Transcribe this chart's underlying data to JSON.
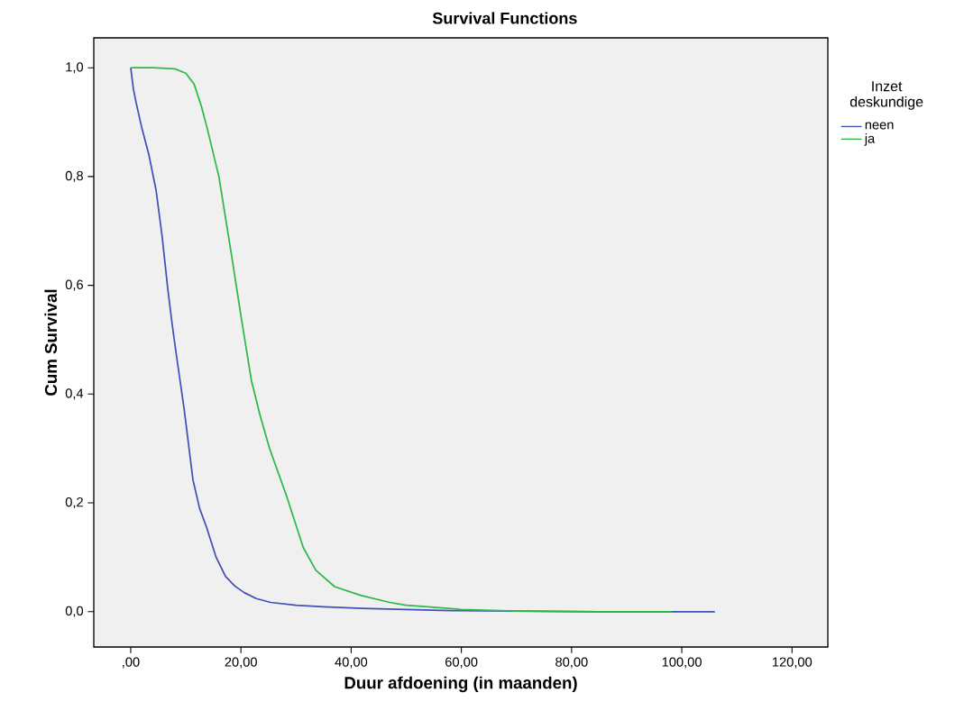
{
  "chart_data": {
    "type": "line",
    "title": "Survival Functions",
    "xlabel": "Duur afdoening (in maanden)",
    "ylabel": "Cum Survival",
    "legend_title": "Inzet deskundige",
    "xlim": [
      -6.7,
      126.5
    ],
    "ylim": [
      -0.065,
      1.055
    ],
    "xticks": [
      {
        "value": 0,
        "label": ",00"
      },
      {
        "value": 20,
        "label": "20,00"
      },
      {
        "value": 40,
        "label": "40,00"
      },
      {
        "value": 60,
        "label": "60,00"
      },
      {
        "value": 80,
        "label": "80,00"
      },
      {
        "value": 100,
        "label": "100,00"
      },
      {
        "value": 120,
        "label": "120,00"
      }
    ],
    "yticks": [
      {
        "value": 0,
        "label": "0,0"
      },
      {
        "value": 0.2,
        "label": "0,2"
      },
      {
        "value": 0.4,
        "label": "0,4"
      },
      {
        "value": 0.6,
        "label": "0,6"
      },
      {
        "value": 0.8,
        "label": "0,8"
      },
      {
        "value": 1.0,
        "label": "1,0"
      }
    ],
    "grid": false,
    "legend": "right",
    "marker": "none",
    "line_style": "solid",
    "series": [
      {
        "name": "neen",
        "color": "#4050b8",
        "x": [
          0,
          0.5,
          1,
          2.0,
          3.3,
          4.6,
          5.7,
          6.7,
          7.5,
          8.2,
          9.7,
          11.3,
          12.5,
          13.8,
          15.5,
          17.2,
          18.9,
          20.6,
          22.8,
          25.4,
          30,
          35,
          42,
          50,
          58,
          70,
          85,
          106
        ],
        "values": [
          1.0,
          0.96,
          0.935,
          0.89,
          0.84,
          0.775,
          0.69,
          0.596,
          0.53,
          0.478,
          0.372,
          0.242,
          0.19,
          0.154,
          0.1,
          0.065,
          0.047,
          0.035,
          0.024,
          0.017,
          0.012,
          0.009,
          0.006,
          0.004,
          0.002,
          0.001,
          0.0,
          0.0
        ]
      },
      {
        "name": "ja",
        "color": "#2db84a",
        "x": [
          0,
          4,
          8,
          10,
          11.5,
          12.8,
          13.8,
          16.0,
          18.3,
          20.1,
          21.9,
          23.5,
          25.2,
          28.3,
          31.3,
          33.6,
          37.0,
          41.7,
          47.0,
          50,
          55,
          60,
          70,
          85,
          98.2
        ],
        "values": [
          1.0,
          1.0,
          0.998,
          0.99,
          0.97,
          0.93,
          0.892,
          0.8,
          0.655,
          0.538,
          0.425,
          0.36,
          0.3,
          0.212,
          0.118,
          0.076,
          0.046,
          0.03,
          0.017,
          0.012,
          0.008,
          0.004,
          0.001,
          0.0,
          0.0
        ]
      }
    ]
  }
}
